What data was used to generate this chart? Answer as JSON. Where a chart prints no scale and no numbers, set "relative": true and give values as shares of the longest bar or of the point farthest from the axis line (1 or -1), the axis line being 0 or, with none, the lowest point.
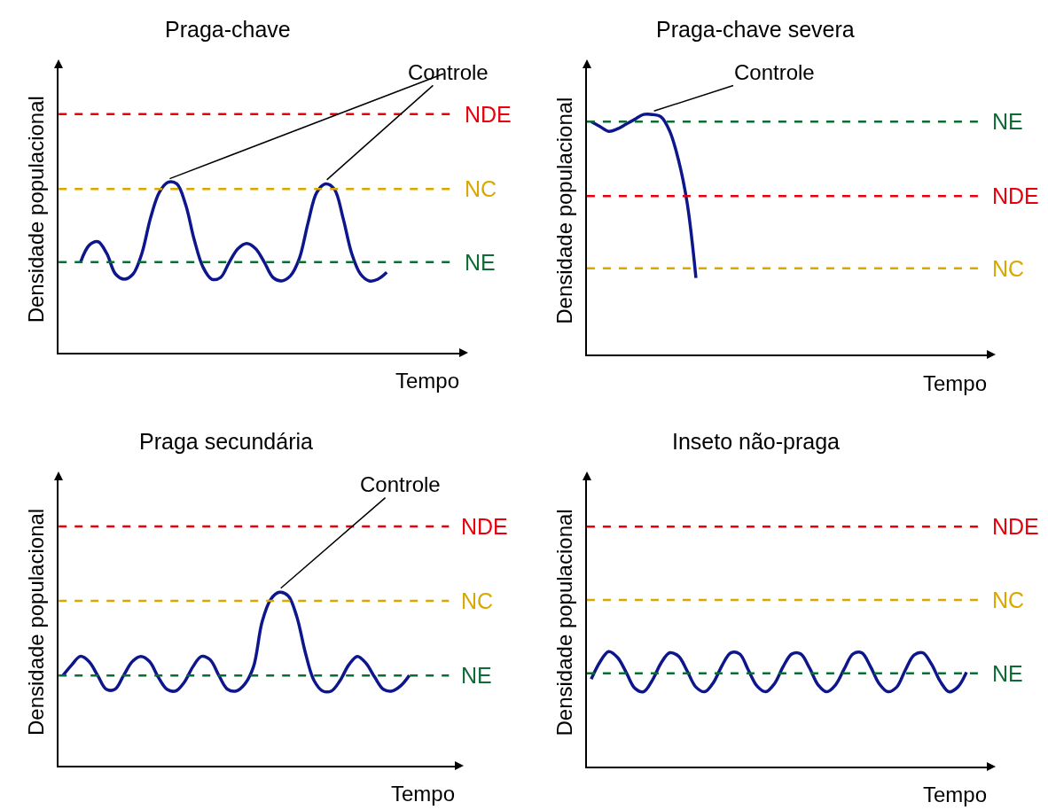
{
  "chart_data": [
    {
      "type": "line",
      "title": "Praga-chave",
      "xlabel": "Tempo",
      "ylabel": "Densidade populacional",
      "relative": true,
      "grid": false,
      "tick_labels": false,
      "categories": [
        null,
        null,
        null,
        null,
        null,
        null,
        null,
        null,
        null,
        null,
        null,
        null,
        null,
        null,
        null,
        null,
        null,
        null,
        null,
        null,
        null,
        null,
        null,
        null,
        null,
        null,
        null,
        null,
        null,
        null,
        null,
        null,
        null,
        null,
        null,
        null,
        null,
        null,
        null,
        null,
        null,
        null,
        null,
        null,
        null,
        null
      ],
      "series": [
        {
          "color": "#0d168c",
          "values": [
            null,
            null,
            0.53,
            0.63,
            0.65,
            0.58,
            0.46,
            0.43,
            0.46,
            0.58,
            0.79,
            0.94,
            1,
            0.99,
            0.87,
            0.66,
            0.5,
            0.43,
            0.44,
            0.53,
            0.61,
            0.64,
            0.61,
            0.53,
            0.44,
            0.42,
            0.45,
            0.55,
            0.76,
            0.94,
            0.99,
            0.96,
            0.79,
            0.58,
            0.46,
            0.42,
            0.43,
            0.47,
            null,
            null,
            null,
            null,
            null,
            null,
            null,
            null
          ]
        }
      ],
      "ref_lines": [
        {
          "axis": "y",
          "value": 1.4,
          "label": "NDE",
          "color": "#e8000b",
          "line_style": "dashed"
        },
        {
          "axis": "y",
          "value": 0.96,
          "label": "NC",
          "color": "#d9a800",
          "line_style": "dashed"
        },
        {
          "axis": "y",
          "value": 0.53,
          "label": "NE",
          "color": "#0f6b35",
          "line_style": "dashed"
        }
      ],
      "annotations": [
        "Controle"
      ]
    },
    {
      "type": "line",
      "title": "Praga-chave severa",
      "xlabel": "Tempo",
      "ylabel": "Densidade populacional",
      "relative": true,
      "grid": false,
      "tick_labels": false,
      "categories": [
        null,
        null,
        null,
        null,
        null,
        null,
        null,
        null,
        null,
        null,
        null,
        null,
        null,
        null,
        null,
        null,
        null,
        null,
        null,
        null,
        null,
        null,
        null,
        null,
        null,
        null,
        null,
        null,
        null,
        null,
        null,
        null,
        null,
        null,
        null,
        null,
        null,
        null,
        null,
        null,
        null,
        null,
        null,
        null,
        null,
        null
      ],
      "series": [
        {
          "color": "#0d168c",
          "values": [
            0.97,
            0.95,
            0.93,
            0.94,
            0.96,
            0.98,
            1.0,
            1.0,
            0.99,
            0.93,
            0.81,
            0.63,
            0.32,
            null,
            null,
            null,
            null,
            null,
            null,
            null,
            null,
            null,
            null,
            null,
            null,
            null,
            null,
            null,
            null,
            null,
            null,
            null,
            null,
            null,
            null,
            null,
            null,
            null,
            null,
            null,
            null,
            null,
            null,
            null,
            null,
            null
          ]
        }
      ],
      "ref_lines": [
        {
          "axis": "y",
          "value": 0.97,
          "label": "NE",
          "color": "#0f6b35",
          "line_style": "dashed"
        },
        {
          "axis": "y",
          "value": 0.66,
          "label": "NDE",
          "color": "#e8000b",
          "line_style": "dashed"
        },
        {
          "axis": "y",
          "value": 0.36,
          "label": "NC",
          "color": "#d9a800",
          "line_style": "dashed"
        }
      ],
      "annotations": [
        "Controle"
      ]
    },
    {
      "type": "line",
      "title": "Praga secundária",
      "xlabel": "Tempo",
      "ylabel": "Densidade populacional",
      "relative": true,
      "grid": false,
      "tick_labels": false,
      "categories": [
        null,
        null,
        null,
        null,
        null,
        null,
        null,
        null,
        null,
        null,
        null,
        null,
        null,
        null,
        null,
        null,
        null,
        null,
        null,
        null,
        null,
        null,
        null,
        null,
        null,
        null,
        null,
        null,
        null,
        null,
        null,
        null,
        null,
        null,
        null,
        null,
        null,
        null,
        null,
        null,
        null,
        null,
        null,
        null,
        null,
        null
      ],
      "series": [
        {
          "color": "#0d168c",
          "values": [
            0.52,
            0.58,
            0.63,
            0.6,
            0.52,
            0.44,
            0.44,
            0.52,
            0.6,
            0.63,
            0.6,
            0.51,
            0.44,
            0.43,
            0.48,
            0.57,
            0.63,
            0.61,
            0.52,
            0.44,
            0.43,
            0.47,
            0.57,
            0.83,
            0.96,
            1,
            0.98,
            0.86,
            0.65,
            0.49,
            0.43,
            0.43,
            0.49,
            0.58,
            0.63,
            0.59,
            0.51,
            0.44,
            0.43,
            0.46,
            0.52,
            null,
            null,
            null,
            null,
            null
          ]
        }
      ],
      "ref_lines": [
        {
          "axis": "y",
          "value": 1.38,
          "label": "NDE",
          "color": "#e8000b",
          "line_style": "dashed"
        },
        {
          "axis": "y",
          "value": 0.95,
          "label": "NC",
          "color": "#d9a800",
          "line_style": "dashed"
        },
        {
          "axis": "y",
          "value": 0.52,
          "label": "NE",
          "color": "#0f6b35",
          "line_style": "dashed"
        }
      ],
      "annotations": [
        "Controle"
      ]
    },
    {
      "type": "line",
      "title": "Inseto não-praga",
      "xlabel": "Tempo",
      "ylabel": "Densidade populacional",
      "relative": true,
      "grid": false,
      "tick_labels": false,
      "categories": [
        null,
        null,
        null,
        null,
        null,
        null,
        null,
        null,
        null,
        null,
        null,
        null,
        null,
        null,
        null,
        null,
        null,
        null,
        null,
        null,
        null,
        null,
        null,
        null,
        null,
        null,
        null,
        null,
        null,
        null,
        null,
        null,
        null,
        null,
        null,
        null,
        null,
        null,
        null,
        null,
        null,
        null,
        null,
        null,
        null,
        null
      ],
      "series": [
        {
          "color": "#0d168c",
          "values": [
            0.76,
            0.91,
            1,
            0.95,
            0.82,
            0.68,
            0.65,
            0.75,
            0.9,
            0.99,
            0.96,
            0.83,
            0.69,
            0.65,
            0.73,
            0.88,
            0.99,
            0.98,
            0.84,
            0.7,
            0.65,
            0.72,
            0.87,
            0.98,
            0.98,
            0.86,
            0.71,
            0.65,
            0.71,
            0.85,
            0.98,
            0.99,
            0.87,
            0.72,
            0.65,
            0.69,
            0.84,
            0.97,
            0.99,
            0.89,
            0.74,
            0.65,
            0.69,
            0.82,
            null,
            null
          ]
        }
      ],
      "ref_lines": [
        {
          "axis": "y",
          "value": 2.09,
          "label": "NDE",
          "color": "#e8000b",
          "line_style": "dashed"
        },
        {
          "axis": "y",
          "value": 1.45,
          "label": "NC",
          "color": "#d9a800",
          "line_style": "dashed"
        },
        {
          "axis": "y",
          "value": 0.81,
          "label": "NE",
          "color": "#0f6b35",
          "line_style": "dashed"
        }
      ]
    }
  ]
}
